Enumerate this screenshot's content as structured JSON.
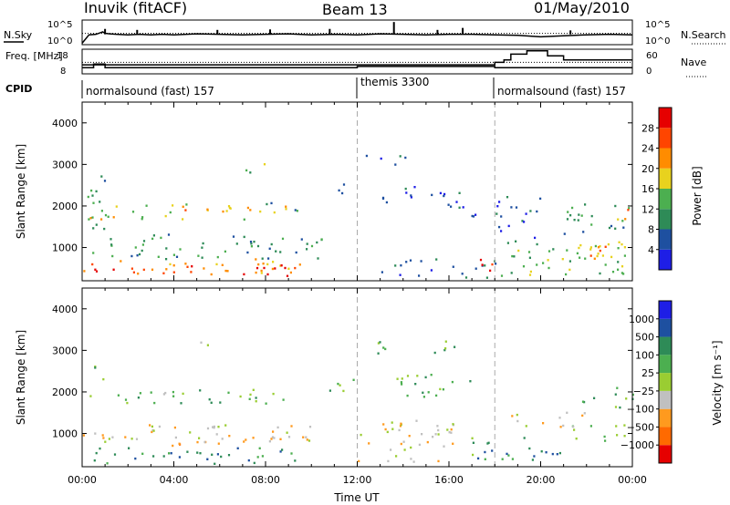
{
  "header": {
    "station": "Inuvik (fitACF)",
    "beam": "Beam 13",
    "date": "01/May/2010"
  },
  "chart_data": [
    {
      "type": "line",
      "panel": "noise",
      "left_label": "N.Sky",
      "right_label": "N.Search",
      "left_ticks": [
        "10^5",
        "10^0"
      ],
      "right_ticks": [
        "10^5",
        "10^0"
      ],
      "x_hours": [
        0,
        0.3,
        0.6,
        0.9,
        1.0,
        1.2,
        1.5,
        2.0,
        2.5,
        3.0,
        3.5,
        4.0,
        5.0,
        6.0,
        7.0,
        8.0,
        9.0,
        10.0,
        11.0,
        12.0,
        13.0,
        14.0,
        15.0,
        16.0,
        17.0,
        18.0,
        19.0,
        20.0,
        21.0,
        22.0,
        23.0,
        24.0
      ],
      "sky_log": [
        0.3,
        2.0,
        2.1,
        2.6,
        2.3,
        2.2,
        2.1,
        2.0,
        2.1,
        2.0,
        2.1,
        2.0,
        2.2,
        2.1,
        2.0,
        2.1,
        2.2,
        2.0,
        2.1,
        2.0,
        2.2,
        2.1,
        2.0,
        2.1,
        2.1,
        2.0,
        1.9,
        1.6,
        1.8,
        2.0,
        2.1,
        2.0
      ],
      "search_log": [
        2.3,
        2.3,
        2.3,
        2.3,
        2.3,
        2.3,
        2.3,
        2.3,
        2.3,
        2.3,
        2.3,
        2.3,
        2.3,
        2.3,
        2.3,
        2.3,
        2.3,
        2.3,
        2.3,
        2.3,
        2.3,
        2.3,
        2.3,
        2.3,
        2.3,
        2.3,
        2.3,
        2.3,
        2.3,
        2.3,
        2.3,
        2.3
      ],
      "spikes": [
        {
          "x": 1.0,
          "v": 3.2
        },
        {
          "x": 2.4,
          "v": 3.0
        },
        {
          "x": 5.9,
          "v": 3.0
        },
        {
          "x": 8.2,
          "v": 3.1
        },
        {
          "x": 10.8,
          "v": 3.2
        },
        {
          "x": 13.6,
          "v": 4.6
        },
        {
          "x": 15.5,
          "v": 3.0
        },
        {
          "x": 16.6,
          "v": 3.4
        },
        {
          "x": 21.3,
          "v": 2.9
        }
      ],
      "ylim": [
        0,
        5
      ]
    },
    {
      "type": "line",
      "panel": "frequency",
      "left_label": "Freq. [MHz]",
      "right_label": "Nave",
      "left_ticks": [
        18,
        8
      ],
      "right_ticks": [
        60,
        0
      ],
      "freq_x": [
        0,
        0.5,
        0.5,
        1.0,
        1.0,
        12.0,
        12.0,
        18.0,
        18.0,
        24.0
      ],
      "freq_y": [
        10.5,
        10.5,
        12.0,
        12.0,
        10.5,
        10.5,
        11.0,
        11.0,
        10.5,
        10.5
      ],
      "nave_x": [
        0,
        18.0,
        18.0,
        18.4,
        18.4,
        18.7,
        18.7,
        19.4,
        19.4,
        20.3,
        20.3,
        21.0,
        21.0,
        24.0
      ],
      "nave_y": [
        22,
        22,
        28,
        28,
        34,
        34,
        48,
        48,
        56,
        56,
        44,
        44,
        34,
        34
      ],
      "dotted_level": 28,
      "ylim": [
        8,
        18
      ]
    },
    {
      "type": "table",
      "panel": "cpid",
      "left_label": "CPID",
      "segments": [
        {
          "start": 0,
          "end": 12,
          "label": "normalsound (fast) 157"
        },
        {
          "start": 12,
          "end": 18,
          "label": "themis 3300"
        },
        {
          "start": 18,
          "end": 24,
          "label": "normalsound (fast) 157"
        }
      ]
    },
    {
      "type": "heatmap",
      "panel": "power",
      "ylabel": "Slant Range [km]",
      "yticks": [
        1000,
        2000,
        3000,
        4000
      ],
      "ylim": [
        200,
        4500
      ],
      "colorbar_label": "Power [dB]",
      "colorbar_ticks": [
        "4",
        "8",
        "12",
        "16",
        "20",
        "24",
        "28"
      ],
      "colors": [
        "#1e1ee6",
        "#1e50a0",
        "#2e8b57",
        "#4caf50",
        "#e8d21e",
        "#ff8c00",
        "#ff4500",
        "#e60000"
      ],
      "bands": [
        {
          "x0": 0.0,
          "x1": 9.5,
          "r0": 300,
          "r1": 700,
          "v": 5
        },
        {
          "x0": 0.3,
          "x1": 1.5,
          "r0": 250,
          "r1": 600,
          "v": 7
        },
        {
          "x0": 3.5,
          "x1": 5.0,
          "r0": 250,
          "r1": 600,
          "v": 6
        },
        {
          "x0": 7.0,
          "x1": 9.8,
          "r0": 250,
          "r1": 600,
          "v": 7
        },
        {
          "x0": 0.0,
          "x1": 10.5,
          "r0": 700,
          "r1": 1300,
          "v": 2
        },
        {
          "x0": 0.3,
          "x1": 9.0,
          "r0": 1650,
          "r1": 2050,
          "v": 4
        },
        {
          "x0": 0.2,
          "x1": 0.7,
          "r0": 2200,
          "r1": 2600,
          "v": 3
        },
        {
          "x0": 0.2,
          "x1": 1.0,
          "r0": 1300,
          "r1": 2900,
          "v": 2
        },
        {
          "x0": 3.5,
          "x1": 5.5,
          "r0": 1800,
          "r1": 2000,
          "v": 5
        },
        {
          "x0": 7.0,
          "x1": 8.0,
          "r0": 2600,
          "r1": 3000,
          "v": 3
        },
        {
          "x0": 8.0,
          "x1": 9.5,
          "r0": 1800,
          "r1": 2100,
          "v": 2
        },
        {
          "x0": 11.0,
          "x1": 11.8,
          "r0": 2200,
          "r1": 2600,
          "v": 1
        },
        {
          "x0": 12.3,
          "x1": 14.5,
          "r0": 2900,
          "r1": 3200,
          "v": 1
        },
        {
          "x0": 13.0,
          "x1": 16.5,
          "r0": 2000,
          "r1": 2500,
          "v": 1
        },
        {
          "x0": 15.0,
          "x1": 17.5,
          "r0": 1700,
          "r1": 2000,
          "v": 1
        },
        {
          "x0": 13.0,
          "x1": 18.0,
          "r0": 250,
          "r1": 700,
          "v": 1
        },
        {
          "x0": 17.0,
          "x1": 18.2,
          "r0": 250,
          "r1": 700,
          "v": 7
        },
        {
          "x0": 18.2,
          "x1": 24.0,
          "r0": 300,
          "r1": 1200,
          "v": 3
        },
        {
          "x0": 20.5,
          "x1": 24.0,
          "r0": 700,
          "r1": 1100,
          "v": 5
        },
        {
          "x0": 21.0,
          "x1": 24.0,
          "r0": 1300,
          "r1": 2100,
          "v": 2
        },
        {
          "x0": 23.0,
          "x1": 24.0,
          "r0": 1600,
          "r1": 1900,
          "v": 5
        },
        {
          "x0": 18.0,
          "x1": 20.0,
          "r0": 1200,
          "r1": 2200,
          "v": 1
        }
      ]
    },
    {
      "type": "heatmap",
      "panel": "velocity",
      "ylabel": "Slant Range [km]",
      "yticks": [
        1000,
        2000,
        3000,
        4000
      ],
      "ylim": [
        200,
        4500
      ],
      "xlabel": "Time UT",
      "xticks": [
        "00:00",
        "04:00",
        "08:00",
        "12:00",
        "16:00",
        "20:00",
        "00:00"
      ],
      "colorbar_label": "Velocity [m s⁻¹]",
      "colorbar_ticks": [
        "1000",
        "500",
        "100",
        "25",
        "−25",
        "−100",
        "−500",
        "−1000"
      ],
      "colors": [
        "#1e1ee6",
        "#1e50a0",
        "#2e8b57",
        "#4caf50",
        "#9acd32",
        "#c0c0c0",
        "#ff9a1e",
        "#ff6a00",
        "#e60000"
      ],
      "bands": [
        {
          "x0": 0.0,
          "x1": 9.5,
          "r0": 250,
          "r1": 650,
          "v": 6
        },
        {
          "x0": 0.0,
          "x1": 10.5,
          "r0": 650,
          "r1": 1200,
          "v": 3
        },
        {
          "x0": 4.0,
          "x1": 6.5,
          "r0": 700,
          "r1": 1000,
          "v": 2
        },
        {
          "x0": 0.3,
          "x1": 9.0,
          "r0": 1700,
          "r1": 2050,
          "v": 5
        },
        {
          "x0": 0.5,
          "x1": 1.2,
          "r0": 2200,
          "r1": 2700,
          "v": 5
        },
        {
          "x0": 3.5,
          "x1": 5.5,
          "r0": 1800,
          "r1": 2000,
          "v": 4
        },
        {
          "x0": 4.5,
          "x1": 5.5,
          "r0": 3100,
          "r1": 3300,
          "v": 4
        },
        {
          "x0": 10.5,
          "x1": 12.0,
          "r0": 2000,
          "r1": 2400,
          "v": 5
        },
        {
          "x0": 12.3,
          "x1": 16.5,
          "r0": 2900,
          "r1": 3200,
          "v": 5
        },
        {
          "x0": 13.5,
          "x1": 17.0,
          "r0": 1800,
          "r1": 2400,
          "v": 5
        },
        {
          "x0": 12.0,
          "x1": 17.0,
          "r0": 300,
          "r1": 1300,
          "v": 3
        },
        {
          "x0": 17.0,
          "x1": 21.0,
          "r0": 300,
          "r1": 900,
          "v": 6
        },
        {
          "x0": 21.0,
          "x1": 24.0,
          "r0": 800,
          "r1": 1200,
          "v": 5
        },
        {
          "x0": 21.5,
          "x1": 24.0,
          "r0": 1600,
          "r1": 2100,
          "v": 5
        },
        {
          "x0": 18.5,
          "x1": 22.0,
          "r0": 1100,
          "r1": 1500,
          "v": 3
        }
      ]
    }
  ]
}
